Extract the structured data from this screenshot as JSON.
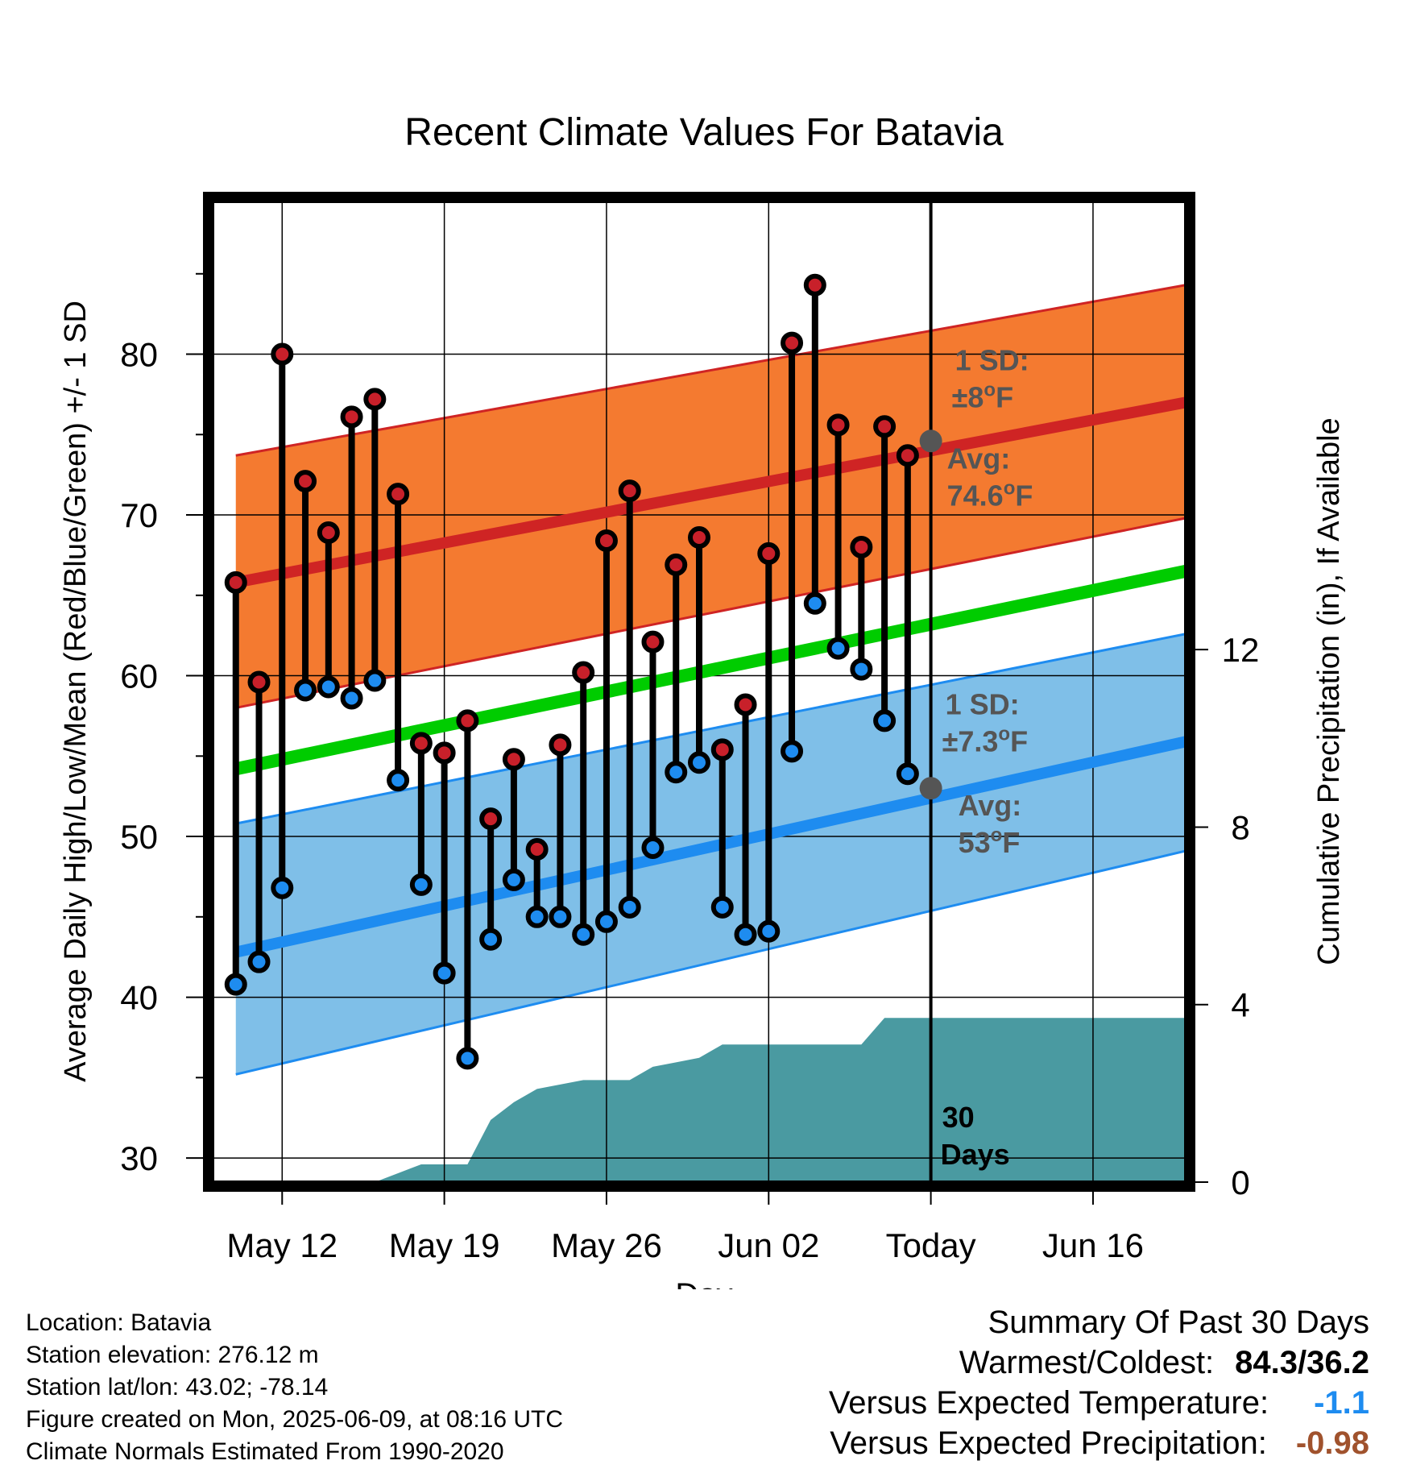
{
  "chart_data": {
    "type": "line",
    "title": "Recent Climate Values For Batavia",
    "xlabel": "Day",
    "ylabel": "Average Daily High/Low/Mean (Red/Blue/Green) +/- 1 SD",
    "y2label": "Cumulative Precipitation (in), If Available",
    "x_tick_labels": [
      "May 12",
      "May 19",
      "May 26",
      "Jun 02",
      "Today",
      "Jun 16"
    ],
    "x_tick_dates": [
      "2025-05-12",
      "2025-05-19",
      "2025-05-26",
      "2025-06-02",
      "2025-06-09",
      "2025-06-16"
    ],
    "x_range": [
      "2025-05-09",
      "2025-06-20"
    ],
    "ylim": [
      28.5,
      89.5
    ],
    "yticks": [
      30,
      40,
      50,
      60,
      70,
      80
    ],
    "y2lim": [
      0,
      22.1
    ],
    "y2ticks": [
      0,
      4,
      8,
      12
    ],
    "today": "2025-06-09",
    "dates": [
      "2025-05-10",
      "2025-05-11",
      "2025-05-12",
      "2025-05-13",
      "2025-05-14",
      "2025-05-15",
      "2025-05-16",
      "2025-05-17",
      "2025-05-18",
      "2025-05-19",
      "2025-05-20",
      "2025-05-21",
      "2025-05-22",
      "2025-05-23",
      "2025-05-24",
      "2025-05-25",
      "2025-05-26",
      "2025-05-27",
      "2025-05-28",
      "2025-05-29",
      "2025-05-30",
      "2025-05-31",
      "2025-06-01",
      "2025-06-02",
      "2025-06-03",
      "2025-06-04",
      "2025-06-05",
      "2025-06-06",
      "2025-06-07",
      "2025-06-08"
    ],
    "observed_high": [
      65.8,
      59.6,
      80.0,
      72.1,
      68.9,
      76.1,
      77.2,
      71.3,
      55.8,
      55.2,
      57.2,
      51.1,
      54.8,
      49.2,
      55.7,
      60.2,
      68.4,
      71.5,
      62.1,
      66.9,
      68.6,
      55.4,
      58.2,
      67.6,
      80.7,
      84.3,
      75.6,
      68.0,
      75.5,
      73.7
    ],
    "observed_low": [
      40.8,
      42.2,
      46.8,
      59.1,
      59.3,
      58.6,
      59.7,
      53.5,
      47.0,
      41.5,
      36.2,
      43.6,
      47.3,
      45.0,
      45.0,
      43.9,
      44.7,
      45.6,
      49.3,
      54.0,
      54.6,
      45.6,
      43.9,
      44.1,
      55.3,
      64.5,
      61.7,
      60.4,
      57.2,
      53.9
    ],
    "normals_dates": [
      "2025-05-10",
      "2025-06-20"
    ],
    "normal_high": [
      65.8,
      77.0
    ],
    "normal_high_sd_band": [
      [
        58.0,
        73.7
      ],
      [
        69.8,
        84.3
      ]
    ],
    "normal_mean": [
      54.2,
      66.5
    ],
    "normal_low": [
      42.8,
      55.9
    ],
    "normal_low_sd_band": [
      [
        35.2,
        50.8
      ],
      [
        49.1,
        62.6
      ]
    ],
    "precip_cumulative_dates": [
      "2025-05-10",
      "2025-05-16",
      "2025-05-17",
      "2025-05-18",
      "2025-05-19",
      "2025-05-20",
      "2025-05-21",
      "2025-05-22",
      "2025-05-23",
      "2025-05-24",
      "2025-05-25",
      "2025-05-26",
      "2025-05-27",
      "2025-05-28",
      "2025-05-29",
      "2025-05-30",
      "2025-05-31",
      "2025-06-01",
      "2025-06-02",
      "2025-06-03",
      "2025-06-04",
      "2025-06-05",
      "2025-06-06",
      "2025-06-07",
      "2025-06-20"
    ],
    "precip_cumulative_in": [
      0,
      0,
      0.2,
      0.4,
      0.4,
      0.4,
      1.4,
      1.8,
      2.1,
      2.2,
      2.3,
      2.3,
      2.3,
      2.6,
      2.7,
      2.8,
      3.1,
      3.1,
      3.1,
      3.1,
      3.1,
      3.1,
      3.1,
      3.7,
      3.7
    ],
    "annotations": {
      "high_sd_label": "1 SD:",
      "high_sd_value": "±8",
      "high_avg_label": "Avg:",
      "high_avg_value": "74.6",
      "low_sd_label": "1 SD:",
      "low_sd_value": "±7.3",
      "low_avg_label": "Avg:",
      "low_avg_value": "53",
      "deg": "o",
      "unit": "F",
      "days_line1": "30",
      "days_line2": "Days"
    },
    "high_avg_today": 74.6,
    "low_avg_today": 53.0,
    "colors": {
      "high_band": "#f47a30",
      "high_line": "#cf2424",
      "low_band": "#7fbfe8",
      "low_line": "#1e8cf0",
      "mean_line": "#00cc00",
      "precip_fill": "#4a9aa1",
      "high_dot": "#c8202a",
      "low_dot": "#1e8cf0",
      "today_marker": "#555555"
    }
  },
  "footer": {
    "location": "Location: Batavia",
    "elevation": "Station elevation: 276.12 m",
    "latlon": "Station lat/lon: 43.02; -78.14",
    "created": "Figure created on Mon, 2025-06-09, at 08:16 UTC",
    "normals": "Climate Normals Estimated From 1990-2020"
  },
  "summary": {
    "title": "Summary Of Past 30 Days",
    "warmest_coldest_label": "Warmest/Coldest:",
    "warmest_coldest_value": "84.3/36.2",
    "temp_label": "Versus Expected Temperature:",
    "temp_value": "-1.1",
    "temp_color": "#1e8cf0",
    "precip_label": "Versus Expected Precipitation:",
    "precip_value": "-0.98",
    "precip_color": "#a0522d"
  }
}
